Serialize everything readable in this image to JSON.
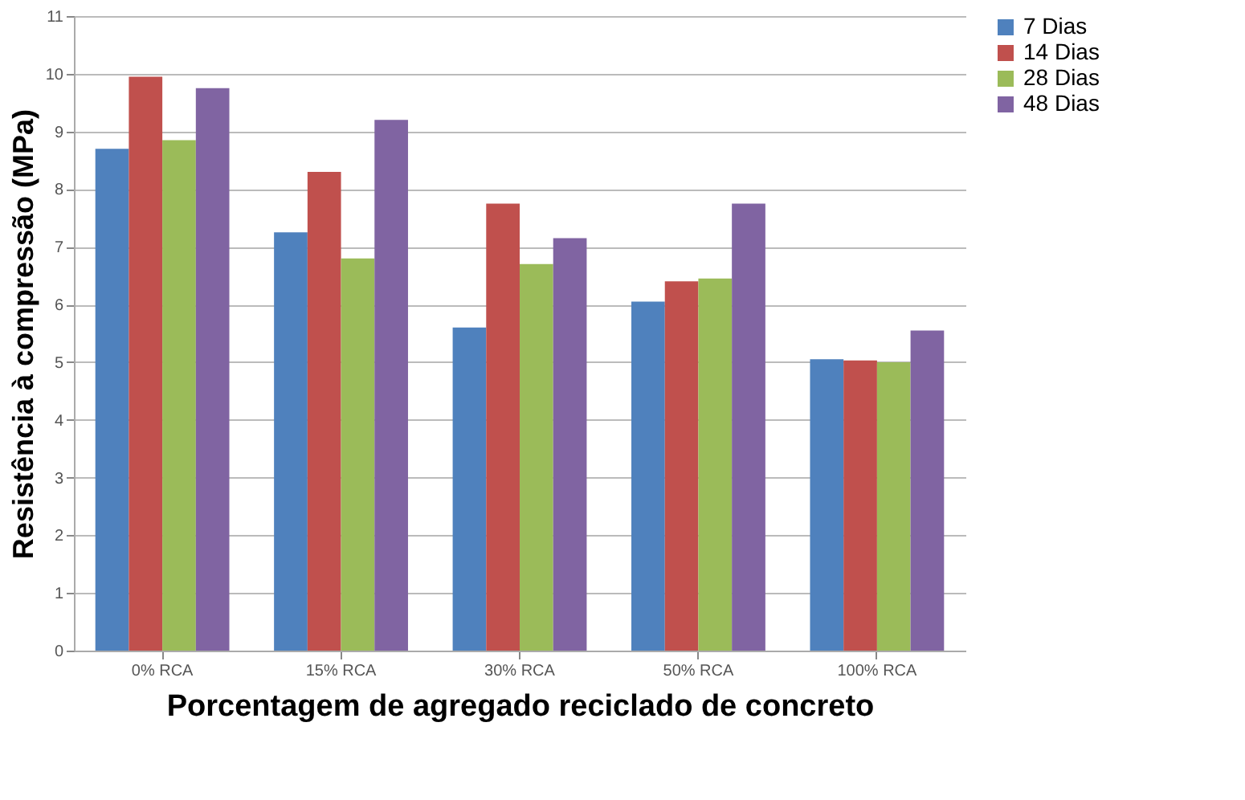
{
  "chart_data": {
    "type": "bar",
    "xlabel": "Porcentagem de agregado reciclado de concreto",
    "ylabel": "Resistência à compressão (MPa)",
    "categories": [
      "0% RCA",
      "15% RCA",
      "30% RCA",
      "50% RCA",
      "100% RCA"
    ],
    "series": [
      {
        "name": "7 Dias",
        "color": "#4f81bd",
        "values": [
          8.7,
          7.25,
          5.6,
          6.05,
          5.05
        ]
      },
      {
        "name": "14 Dias",
        "color": "#c0504d",
        "values": [
          9.95,
          8.3,
          7.75,
          6.4,
          5.03
        ]
      },
      {
        "name": "28 Dias",
        "color": "#9bbb59",
        "values": [
          8.85,
          6.8,
          6.7,
          6.45,
          5.0
        ]
      },
      {
        "name": "48 Dias",
        "color": "#8064a2",
        "values": [
          9.75,
          9.2,
          7.15,
          7.75,
          5.55
        ]
      }
    ],
    "ylim": [
      0,
      11
    ],
    "yticks": [
      0,
      1,
      2,
      3,
      4,
      5,
      6,
      7,
      8,
      9,
      10,
      11
    ],
    "grid": "y",
    "legend": "right"
  }
}
